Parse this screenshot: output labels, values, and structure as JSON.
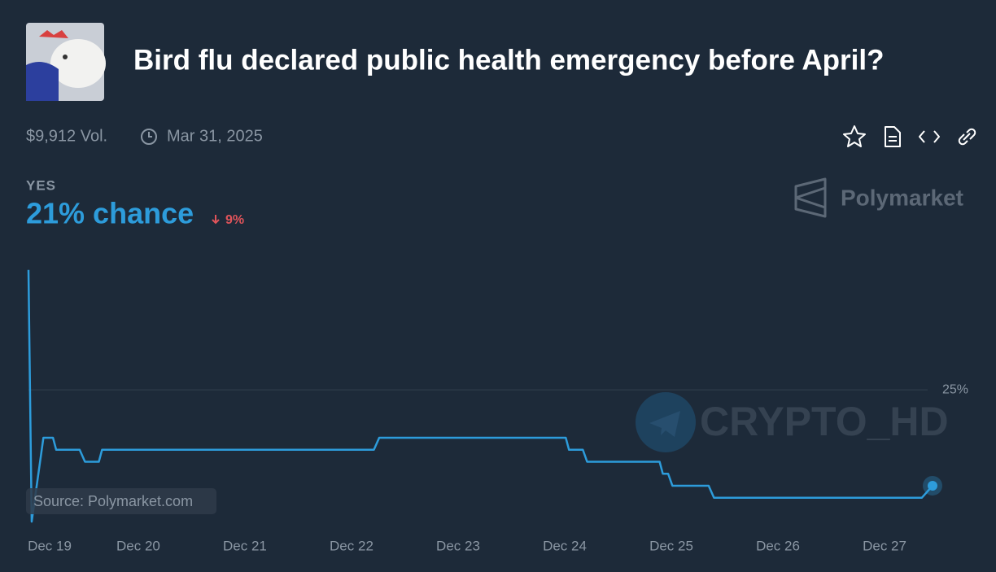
{
  "header": {
    "title": "Bird flu declared public health emergency before April?",
    "volume": "$9,912 Vol.",
    "end_date": "Mar 31, 2025"
  },
  "outcome": {
    "label": "YES",
    "chance": "21% chance",
    "change": "9%"
  },
  "brand": "Polymarket",
  "source": "Source: Polymarket.com",
  "watermark": "CRYPTO_HD",
  "chart_data": {
    "type": "line",
    "x": [
      18.97,
      19.0,
      19.11,
      19.2,
      19.23,
      19.45,
      19.5,
      19.63,
      19.66,
      22.21,
      22.26,
      24.01,
      24.04,
      24.17,
      24.21,
      24.89,
      24.92,
      24.97,
      25.01,
      25.35,
      25.4,
      27.35,
      27.45
    ],
    "series": [
      {
        "name": "YES",
        "color": "#2d9cdb",
        "values": [
          30,
          19.5,
          23,
          23,
          22.5,
          22.5,
          22,
          22,
          22.5,
          22.5,
          23,
          23,
          22.5,
          22.5,
          22,
          22,
          21.5,
          21.5,
          21,
          21,
          20.5,
          20.5,
          21
        ]
      }
    ],
    "xlim": [
      18.97,
      27.45
    ],
    "ylim": [
      19.2,
      30.4
    ],
    "xticks": [
      {
        "value": 19,
        "label": "Dec 19"
      },
      {
        "value": 20,
        "label": "Dec 20"
      },
      {
        "value": 21,
        "label": "Dec 21"
      },
      {
        "value": 22,
        "label": "Dec 22"
      },
      {
        "value": 23,
        "label": "Dec 23"
      },
      {
        "value": 24,
        "label": "Dec 24"
      },
      {
        "value": 25,
        "label": "Dec 25"
      },
      {
        "value": 26,
        "label": "Dec 26"
      },
      {
        "value": 27,
        "label": "Dec 27"
      }
    ],
    "yticks": [
      {
        "value": 25,
        "label": "25%"
      }
    ],
    "grid": true
  }
}
